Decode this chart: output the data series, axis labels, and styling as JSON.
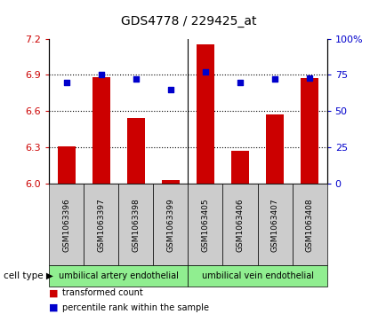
{
  "title": "GDS4778 / 229425_at",
  "samples": [
    "GSM1063396",
    "GSM1063397",
    "GSM1063398",
    "GSM1063399",
    "GSM1063405",
    "GSM1063406",
    "GSM1063407",
    "GSM1063408"
  ],
  "transformed_counts": [
    6.31,
    6.88,
    6.54,
    6.03,
    7.15,
    6.27,
    6.57,
    6.87
  ],
  "percentile_ranks": [
    70,
    75,
    72,
    65,
    77,
    70,
    72,
    73
  ],
  "ylim_left": [
    6.0,
    7.2
  ],
  "yticks_left": [
    6.0,
    6.3,
    6.6,
    6.9,
    7.2
  ],
  "ylim_right": [
    0,
    100
  ],
  "yticks_right": [
    0,
    25,
    50,
    75,
    100
  ],
  "ytick_labels_right": [
    "0",
    "25",
    "50",
    "75",
    "100%"
  ],
  "bar_color": "#cc0000",
  "dot_color": "#0000cc",
  "bar_width": 0.5,
  "cell_types": [
    {
      "label": "umbilical artery endothelial"
    },
    {
      "label": "umbilical vein endothelial"
    }
  ],
  "cell_type_label": "cell type",
  "legend_bar_label": "transformed count",
  "legend_dot_label": "percentile rank within the sample",
  "plot_bg_color": "#ffffff",
  "label_color_left": "#cc0000",
  "label_color_right": "#0000cc",
  "green_color": "#90ee90",
  "gray_color": "#cccccc"
}
